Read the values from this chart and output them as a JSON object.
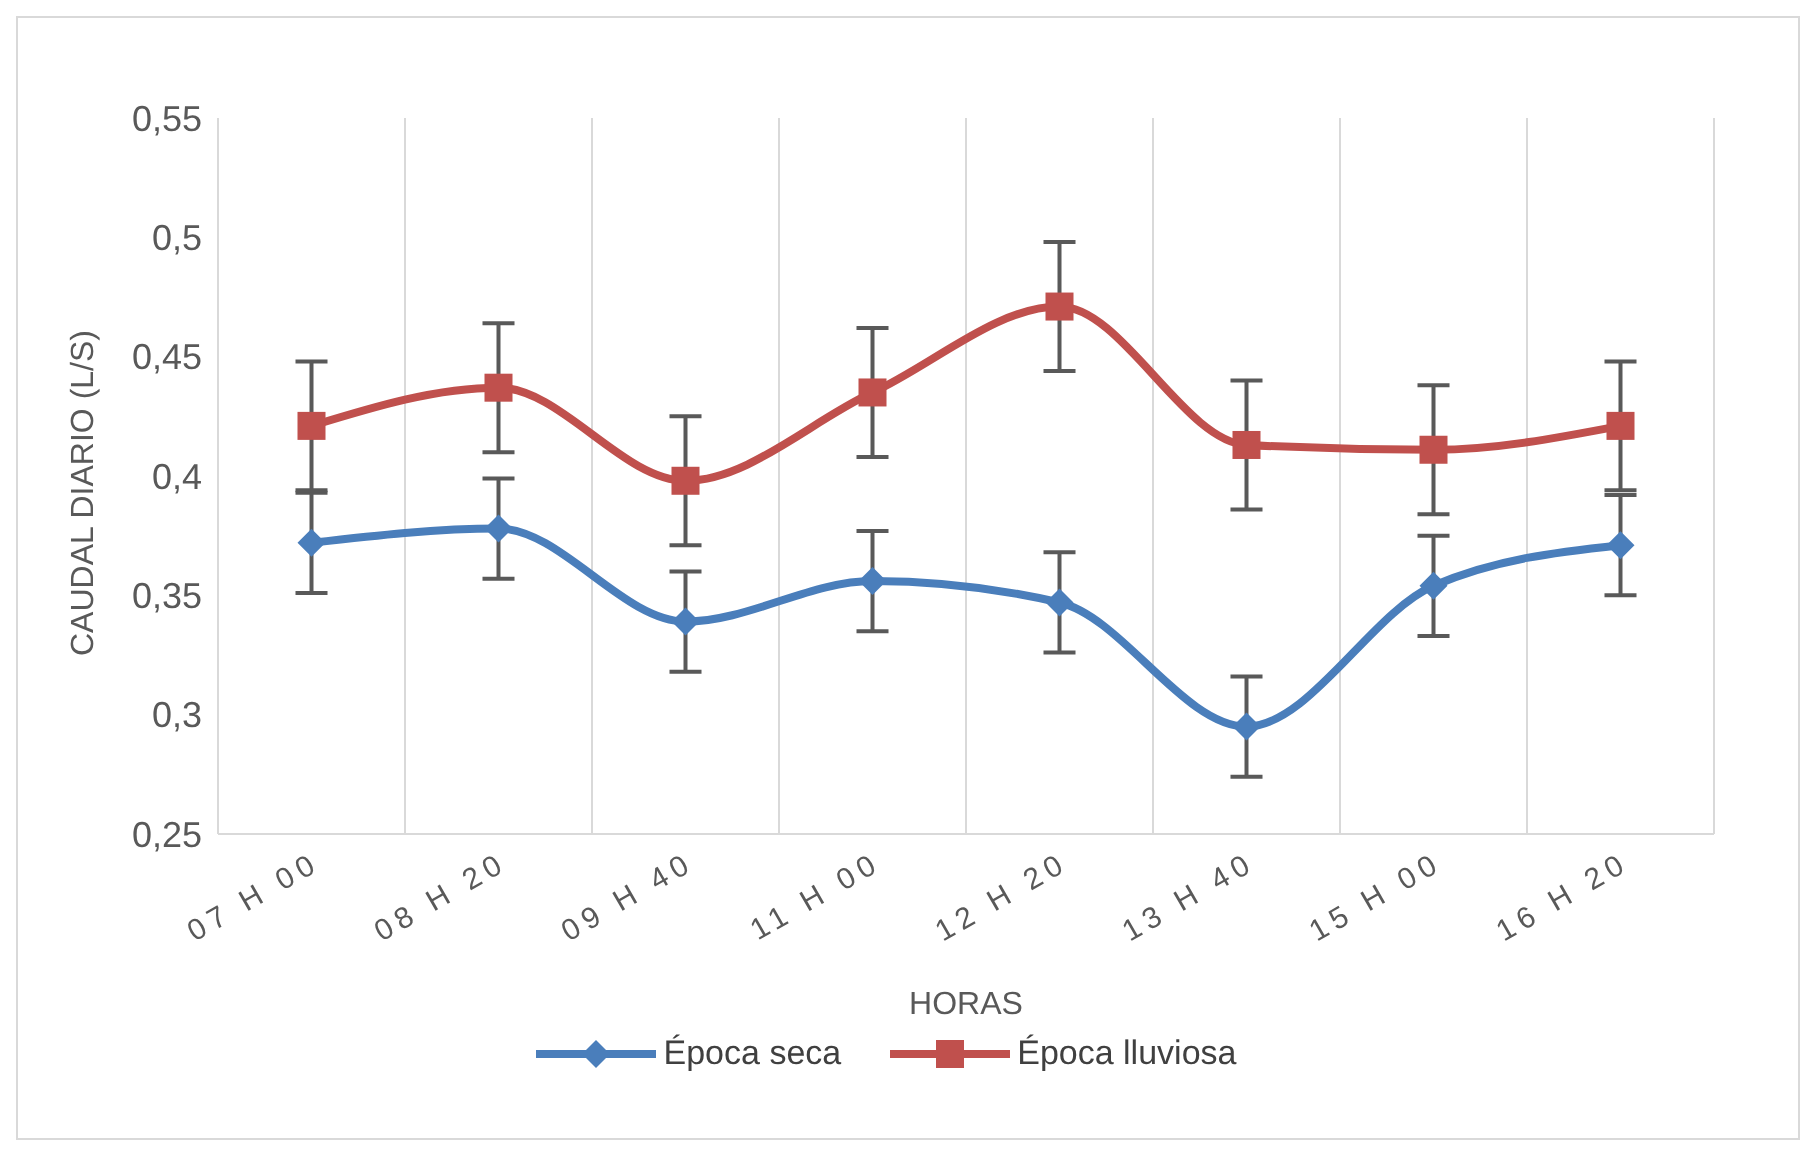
{
  "chart_data": {
    "type": "line",
    "xlabel": "HORAS",
    "ylabel": "CAUDAL DIARIO (L/S)",
    "categories": [
      "07 H 00",
      "08 H 20",
      "09 H 40",
      "11 H 00",
      "12 H 20",
      "13 H 40",
      "15 H 00",
      "16 H 20"
    ],
    "series": [
      {
        "name": "Época seca",
        "color": "#4a7ebb",
        "marker": "diamond",
        "values": [
          0.372,
          0.378,
          0.339,
          0.356,
          0.347,
          0.295,
          0.354,
          0.371
        ],
        "errors": [
          0.021,
          0.021,
          0.021,
          0.021,
          0.021,
          0.021,
          0.021,
          0.021
        ]
      },
      {
        "name": "Época lluviosa",
        "color": "#c0504d",
        "marker": "square",
        "values": [
          0.421,
          0.437,
          0.398,
          0.435,
          0.471,
          0.413,
          0.411,
          0.421
        ],
        "errors": [
          0.027,
          0.027,
          0.027,
          0.027,
          0.027,
          0.027,
          0.027,
          0.027
        ]
      }
    ],
    "ylim": [
      0.25,
      0.55
    ],
    "yticks": [
      {
        "value": 0.25,
        "label": "0,25"
      },
      {
        "value": 0.3,
        "label": "0,3"
      },
      {
        "value": 0.35,
        "label": "0,35"
      },
      {
        "value": 0.4,
        "label": "0,4"
      },
      {
        "value": 0.45,
        "label": "0,45"
      },
      {
        "value": 0.5,
        "label": "0,5"
      },
      {
        "value": 0.55,
        "label": "0,55"
      }
    ],
    "grid": "x",
    "legend": "bottom",
    "line_style": "solid"
  }
}
